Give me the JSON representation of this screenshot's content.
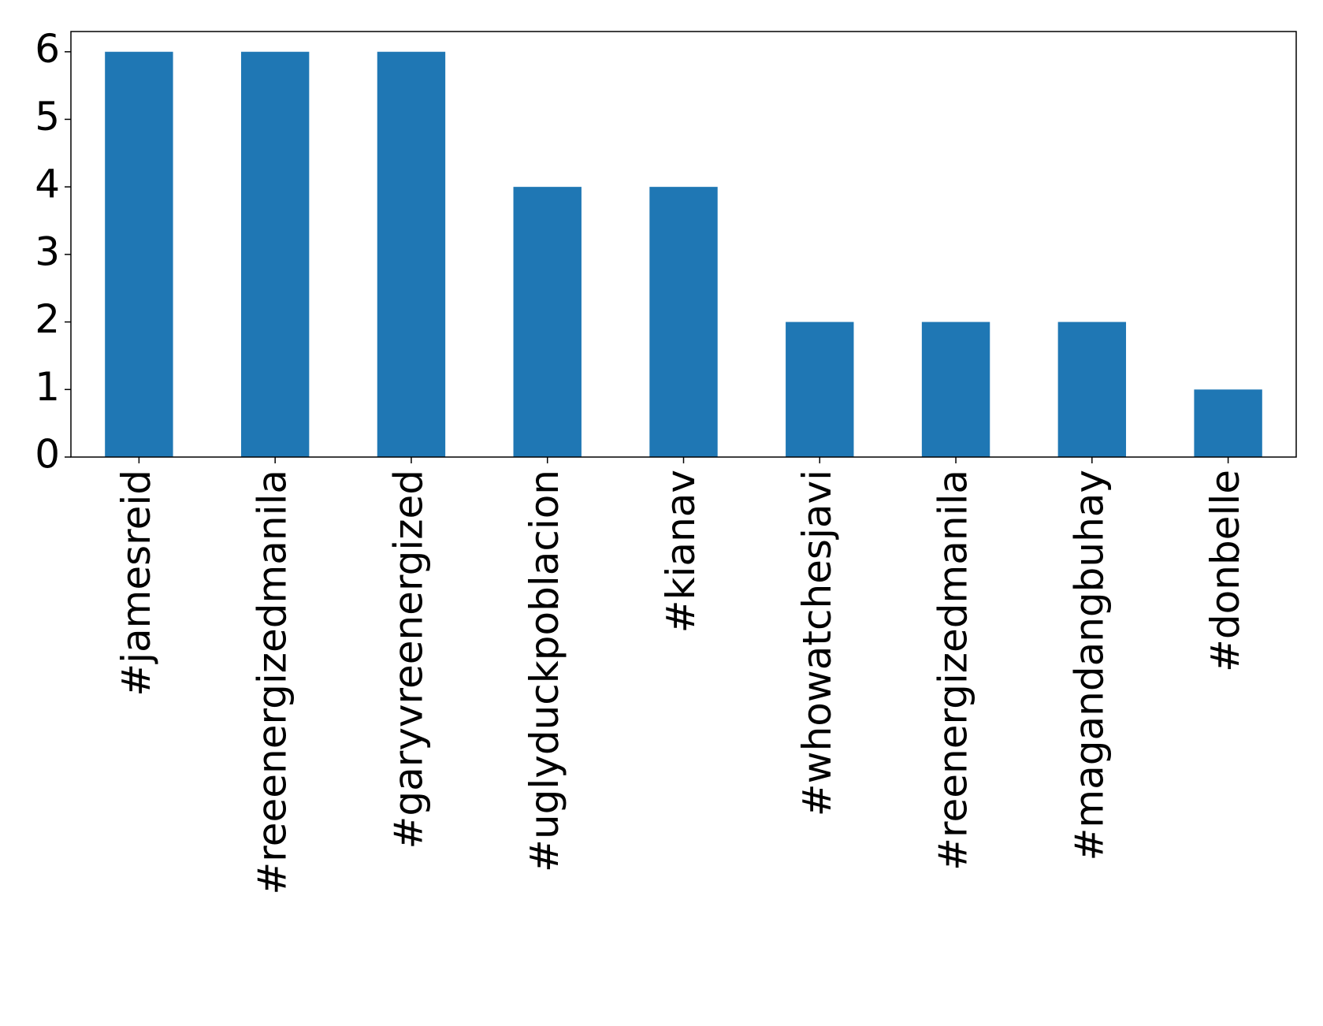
{
  "chart_data": {
    "type": "bar",
    "categories": [
      "#jamesreid",
      "#reeenergizedmanila",
      "#garyvreenergized",
      "#uglyduckpoblacion",
      "#kianav",
      "#whowatchesjavi",
      "#reenergizedmanila",
      "#magandangbuhay",
      "#donbelle"
    ],
    "values": [
      6,
      6,
      6,
      4,
      4,
      2,
      2,
      2,
      1
    ],
    "color": "#1f77b4",
    "ylim": [
      0,
      6.3
    ],
    "yticks": [
      0,
      1,
      2,
      3,
      4,
      5,
      6
    ],
    "grid": false
  }
}
